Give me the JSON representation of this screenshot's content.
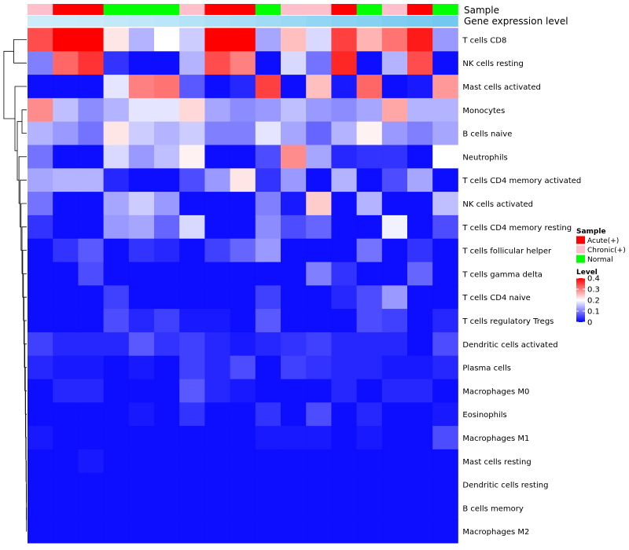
{
  "chart_data": {
    "type": "heatmap",
    "annotation_labels": [
      "Sample",
      "Gene expression level"
    ],
    "rows": [
      "T cells CD8",
      "NK cells resting",
      "Mast cells activated",
      "Monocytes",
      "B cells naive",
      "Neutrophils",
      "T cells CD4 memory activated",
      "NK cells activated",
      "T cells CD4 memory resting",
      "T cells follicular helper",
      "T cells gamma delta",
      "T cells CD4 naive",
      "T cells regulatory  Tregs",
      "Dendritic cells activated",
      "Plasma cells",
      "Macrophages M0",
      "Eosinophils",
      "Macrophages M1",
      "Mast cells resting",
      "Dendritic cells resting",
      "B cells memory",
      "Macrophages M2"
    ],
    "sample_groups": [
      "Chronic(+)",
      "Acute(+)",
      "Acute(+)",
      "Normal",
      "Normal",
      "Normal",
      "Chronic(+)",
      "Acute(+)",
      "Acute(+)",
      "Normal",
      "Chronic(+)",
      "Chronic(+)",
      "Acute(+)",
      "Normal",
      "Chronic(+)",
      "Acute(+)",
      "Normal"
    ],
    "gene_expression_level": [
      0.18,
      0.2,
      0.22,
      0.26,
      0.3,
      0.34,
      0.4,
      0.46,
      0.52,
      0.58,
      0.64,
      0.7,
      0.76,
      0.82,
      0.88,
      0.94,
      1.0
    ],
    "values": [
      [
        0.34,
        0.4,
        0.4,
        0.22,
        0.14,
        0.2,
        0.16,
        0.4,
        0.4,
        0.13,
        0.25,
        0.17,
        0.35,
        0.26,
        0.31,
        0.38,
        0.12
      ],
      [
        0.1,
        0.32,
        0.36,
        0.04,
        0.01,
        0.01,
        0.14,
        0.34,
        0.3,
        0.01,
        0.17,
        0.09,
        0.37,
        0.01,
        0.14,
        0.34,
        0.01
      ],
      [
        0.01,
        0.01,
        0.01,
        0.18,
        0.3,
        0.31,
        0.07,
        0.01,
        0.03,
        0.35,
        0.01,
        0.25,
        0.02,
        0.32,
        0.01,
        0.02,
        0.28
      ],
      [
        0.29,
        0.15,
        0.11,
        0.14,
        0.18,
        0.18,
        0.23,
        0.13,
        0.11,
        0.12,
        0.15,
        0.12,
        0.11,
        0.13,
        0.27,
        0.14,
        0.14
      ],
      [
        0.14,
        0.12,
        0.09,
        0.22,
        0.16,
        0.14,
        0.16,
        0.1,
        0.1,
        0.18,
        0.13,
        0.08,
        0.14,
        0.21,
        0.12,
        0.1,
        0.13
      ],
      [
        0.09,
        0.01,
        0.01,
        0.17,
        0.12,
        0.15,
        0.21,
        0.01,
        0.01,
        0.06,
        0.29,
        0.13,
        0.03,
        0.04,
        0.04,
        0.01,
        0.2
      ],
      [
        0.13,
        0.14,
        0.14,
        0.03,
        0.01,
        0.01,
        0.06,
        0.12,
        0.22,
        0.04,
        0.12,
        0.01,
        0.14,
        0.01,
        0.06,
        0.13,
        0.01
      ],
      [
        0.09,
        0.01,
        0.01,
        0.13,
        0.16,
        0.12,
        0.01,
        0.01,
        0.01,
        0.1,
        0.02,
        0.24,
        0.01,
        0.14,
        0.01,
        0.01,
        0.15
      ],
      [
        0.04,
        0.01,
        0.01,
        0.12,
        0.13,
        0.08,
        0.17,
        0.01,
        0.01,
        0.11,
        0.06,
        0.08,
        0.01,
        0.01,
        0.19,
        0.01,
        0.06
      ],
      [
        0.01,
        0.04,
        0.07,
        0.01,
        0.04,
        0.03,
        0.01,
        0.05,
        0.08,
        0.12,
        0.01,
        0.01,
        0.01,
        0.09,
        0.01,
        0.04,
        0.01
      ],
      [
        0.01,
        0.01,
        0.06,
        0.01,
        0.01,
        0.01,
        0.01,
        0.01,
        0.01,
        0.01,
        0.01,
        0.1,
        0.04,
        0.01,
        0.01,
        0.08,
        0.01
      ],
      [
        0.01,
        0.01,
        0.01,
        0.05,
        0.01,
        0.01,
        0.01,
        0.01,
        0.01,
        0.05,
        0.01,
        0.01,
        0.03,
        0.06,
        0.12,
        0.01,
        0.01
      ],
      [
        0.01,
        0.01,
        0.01,
        0.06,
        0.03,
        0.05,
        0.02,
        0.02,
        0.01,
        0.07,
        0.01,
        0.01,
        0.01,
        0.06,
        0.05,
        0.01,
        0.03
      ],
      [
        0.05,
        0.03,
        0.03,
        0.03,
        0.07,
        0.04,
        0.05,
        0.03,
        0.02,
        0.03,
        0.04,
        0.05,
        0.03,
        0.03,
        0.03,
        0.01,
        0.06
      ],
      [
        0.03,
        0.02,
        0.02,
        0.01,
        0.02,
        0.01,
        0.05,
        0.03,
        0.06,
        0.01,
        0.05,
        0.04,
        0.03,
        0.03,
        0.02,
        0.02,
        0.03
      ],
      [
        0.01,
        0.03,
        0.03,
        0.01,
        0.01,
        0.01,
        0.07,
        0.03,
        0.02,
        0.01,
        0.01,
        0.01,
        0.03,
        0.01,
        0.03,
        0.03,
        0.01
      ],
      [
        0.01,
        0.01,
        0.01,
        0.01,
        0.02,
        0.01,
        0.04,
        0.01,
        0.01,
        0.04,
        0.01,
        0.06,
        0.01,
        0.03,
        0.01,
        0.01,
        0.02
      ],
      [
        0.02,
        0.01,
        0.01,
        0.01,
        0.01,
        0.01,
        0.01,
        0.01,
        0.01,
        0.02,
        0.02,
        0.02,
        0.01,
        0.02,
        0.01,
        0.01,
        0.06
      ],
      [
        0.01,
        0.01,
        0.02,
        0.01,
        0.01,
        0.01,
        0.01,
        0.01,
        0.01,
        0.01,
        0.01,
        0.01,
        0.01,
        0.01,
        0.01,
        0.01,
        0.01
      ],
      [
        0.01,
        0.01,
        0.01,
        0.01,
        0.01,
        0.01,
        0.01,
        0.01,
        0.01,
        0.01,
        0.01,
        0.01,
        0.01,
        0.01,
        0.01,
        0.01,
        0.01
      ],
      [
        0.01,
        0.01,
        0.01,
        0.01,
        0.01,
        0.01,
        0.01,
        0.01,
        0.01,
        0.01,
        0.01,
        0.01,
        0.01,
        0.01,
        0.01,
        0.01,
        0.01
      ],
      [
        0.01,
        0.01,
        0.01,
        0.01,
        0.01,
        0.01,
        0.01,
        0.01,
        0.01,
        0.01,
        0.01,
        0.01,
        0.01,
        0.01,
        0.01,
        0.01,
        0.01
      ]
    ],
    "color_scale": {
      "min": 0,
      "max": 0.4,
      "stops": [
        {
          "value": 0,
          "color": "#0000ff"
        },
        {
          "value": 0.2,
          "color": "#ffffff"
        },
        {
          "value": 0.4,
          "color": "#ff0000"
        }
      ]
    },
    "sample_colors": {
      "Acute(+)": "#ff0000",
      "Chronic(+)": "#ffc0cb",
      "Normal": "#00ff00"
    },
    "expression_color_range": [
      "#e0f4fc",
      "#72c8f0"
    ],
    "legend": {
      "position": "right",
      "sample_title": "Sample",
      "sample_entries": [
        "Acute(+)",
        "Chronic(+)",
        "Normal"
      ],
      "level_title": "Level",
      "level_ticks": [
        "0.4",
        "0.3",
        "0.2",
        "0.1",
        "0"
      ],
      "level_tick_values": [
        0.4,
        0.3,
        0.2,
        0.1,
        0
      ]
    },
    "row_dendrogram": true
  }
}
